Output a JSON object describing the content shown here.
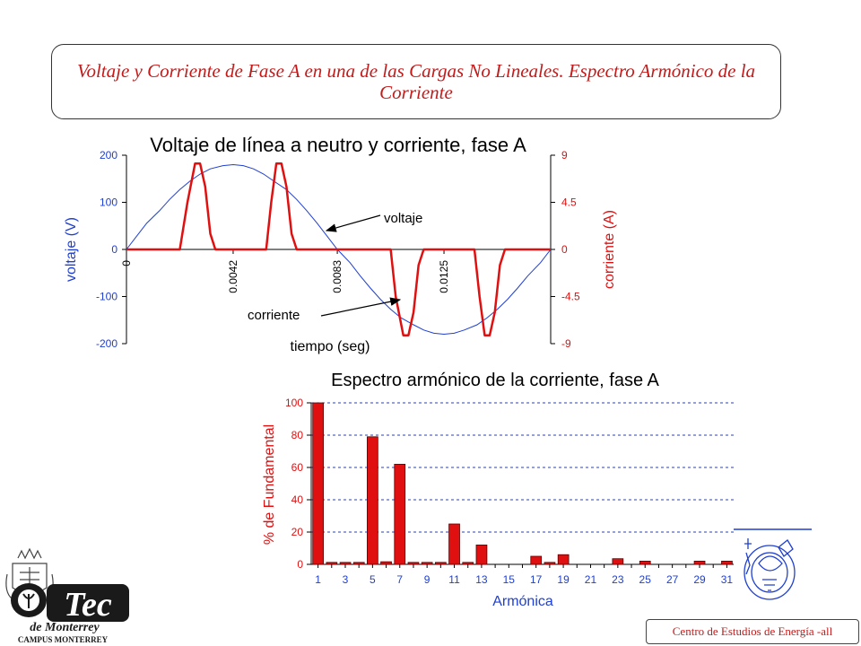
{
  "slide": {
    "title": "Voltaje y Corriente de Fase A en una de las Cargas No Lineales.  Espectro Armónico de la Corriente",
    "footer": "Centro de Estudios de Energía -all"
  },
  "logo": {
    "main": "Tec",
    "sub": "de Monterrey",
    "campus": "CAMPUS MONTERREY"
  },
  "chart_data": [
    {
      "type": "line",
      "title": "Voltaje de línea a neutro y corriente, fase A",
      "xlabel": "tiempo (seg)",
      "ylabel": "voltaje (V)",
      "y2label": "corriente (A)",
      "xlim": [
        0,
        0.0167
      ],
      "ylim": [
        -200,
        200
      ],
      "y2lim": [
        -9,
        9
      ],
      "xticks": [
        "0",
        "0.0042",
        "0.0083",
        "0.0125"
      ],
      "yticks": [
        "200",
        "100",
        "0",
        "-100",
        "-200"
      ],
      "y2ticks": [
        "9",
        "4.5",
        "0",
        "-4.5",
        "-9"
      ],
      "annotations": [
        "voltaje",
        "corriente"
      ],
      "colors": {
        "voltage": "#1f3fd0",
        "current": "#e01010",
        "left_axis": "#1f3fd0",
        "right_axis": "#e01010"
      },
      "series": [
        {
          "name": "voltaje",
          "axis": "left",
          "x": [
            0,
            0.0004,
            0.0008,
            0.0013,
            0.0017,
            0.0021,
            0.0025,
            0.0029,
            0.0033,
            0.0038,
            0.0042,
            0.0046,
            0.005,
            0.0054,
            0.0058,
            0.0063,
            0.0067,
            0.0071,
            0.0075,
            0.0079,
            0.0083,
            0.0088,
            0.0092,
            0.0096,
            0.01,
            0.0104,
            0.0108,
            0.0113,
            0.0117,
            0.0121,
            0.0125,
            0.0129,
            0.0133,
            0.0138,
            0.0142,
            0.0146,
            0.015,
            0.0154,
            0.0158,
            0.0163,
            0.0167
          ],
          "y": [
            0,
            28,
            56,
            82,
            106,
            127,
            145,
            160,
            171,
            178,
            180,
            178,
            171,
            160,
            145,
            127,
            106,
            82,
            56,
            28,
            0,
            -28,
            -56,
            -82,
            -106,
            -127,
            -145,
            -160,
            -171,
            -178,
            -180,
            -178,
            -171,
            -160,
            -145,
            -127,
            -106,
            -82,
            -56,
            -28,
            0
          ]
        },
        {
          "name": "corriente",
          "axis": "right",
          "x": [
            0,
            0.0021,
            0.0024,
            0.0027,
            0.0029,
            0.0031,
            0.0033,
            0.0035,
            0.0037,
            0.0039,
            0.0055,
            0.0057,
            0.0059,
            0.0061,
            0.0063,
            0.0065,
            0.0067,
            0.0069,
            0.0104,
            0.0106,
            0.0109,
            0.0111,
            0.0113,
            0.0115,
            0.0117,
            0.0119,
            0.0121,
            0.0137,
            0.0139,
            0.0141,
            0.0143,
            0.0145,
            0.0147,
            0.0149,
            0.0151,
            0.0167
          ],
          "y": [
            0,
            0,
            4.5,
            8.2,
            8.2,
            6,
            1.5,
            0,
            0,
            0,
            0,
            4.5,
            8.2,
            8.2,
            6,
            1.5,
            0,
            0,
            0,
            -4.5,
            -8.2,
            -8.2,
            -6,
            -1.5,
            0,
            0,
            0,
            0,
            -4.5,
            -8.2,
            -8.2,
            -6,
            -1.5,
            0,
            0,
            0
          ]
        }
      ]
    },
    {
      "type": "bar",
      "title": "Espectro armónico de la corriente, fase A",
      "xlabel": "Armónica",
      "ylabel": "% de Fundamental",
      "ylim": [
        0,
        100
      ],
      "grid": true,
      "yticks": [
        "100",
        "80",
        "60",
        "40",
        "20",
        "0"
      ],
      "xticks": [
        "1",
        "3",
        "5",
        "7",
        "9",
        "11",
        "13",
        "15",
        "17",
        "19",
        "21",
        "23",
        "25",
        "27",
        "29",
        "31"
      ],
      "colors": {
        "bar": "#e01010",
        "bar_edge": "#5a0000",
        "grid": "#1f3fd0",
        "label": "#e01010",
        "tick": "#1f3fd0"
      },
      "categories": [
        "1",
        "2",
        "3",
        "4",
        "5",
        "6",
        "7",
        "8",
        "9",
        "10",
        "11",
        "12",
        "13",
        "14",
        "15",
        "16",
        "17",
        "18",
        "19",
        "20",
        "21",
        "22",
        "23",
        "24",
        "25",
        "26",
        "27",
        "28",
        "29",
        "30",
        "31"
      ],
      "values": [
        100,
        1.2,
        1.2,
        1.2,
        79,
        1.6,
        62,
        1.2,
        1.2,
        1.2,
        25,
        1.2,
        12,
        0,
        0,
        0,
        5,
        1.2,
        6,
        0,
        0,
        0,
        3.5,
        0,
        2,
        0,
        0,
        0,
        2,
        0,
        2
      ]
    }
  ]
}
